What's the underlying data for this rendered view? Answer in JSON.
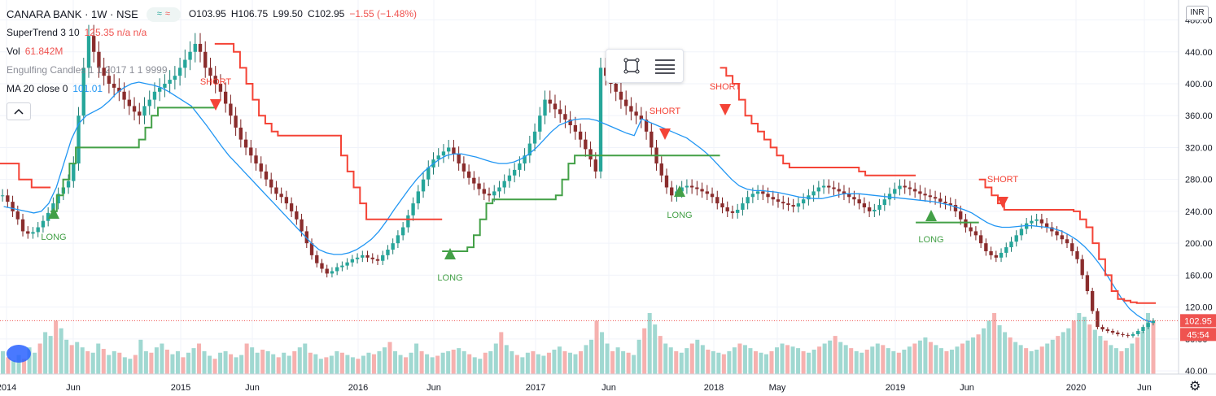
{
  "header": {
    "symbol": "CANARA BANK · 1W · NSE",
    "open": "O103.95",
    "high": "H106.75",
    "low": "L99.50",
    "close": "C102.95",
    "change": "−1.55 (−1.48%)",
    "badge_green": "≈",
    "badge_red": "≈"
  },
  "indicators": [
    {
      "name": "SuperTrend 3 10",
      "value": "125.35 n/a n/a"
    },
    {
      "name": "Vol",
      "value": "61.842M"
    },
    {
      "name": "Engulfing Candles 1 1 2017 1 1 9999",
      "value": ""
    },
    {
      "name": "MA 20 close 0",
      "value": "101.01"
    }
  ],
  "currency": "INR",
  "price_labels": {
    "last": "102.95",
    "countdown": "45:54"
  },
  "colors": {
    "up": "#26a69a",
    "down": "#ef5350",
    "ma": "#2196f3",
    "st_up": "#43a047",
    "st_down": "#f44336",
    "vol_up": "#8fd1c9",
    "vol_down": "#f4a3a1"
  },
  "chart_data": {
    "type": "candlestick",
    "title": "CANARA BANK · 1W · NSE",
    "x_ticks": [
      "2014",
      "Jun",
      "2015",
      "Jun",
      "2016",
      "Jun",
      "2017",
      "Jun",
      "2018",
      "May",
      "2019",
      "Jun",
      "2020",
      "Jun"
    ],
    "y_ticks": [
      "480.00",
      "440.00",
      "400.00",
      "360.00",
      "320.00",
      "280.00",
      "240.00",
      "200.00",
      "160.00",
      "120.00",
      "80.00",
      "40.00"
    ],
    "ylim": [
      36,
      505
    ],
    "grid": true,
    "series": [
      {
        "name": "CANARA BANK",
        "style": "candles",
        "values": [
          260,
          252,
          240,
          230,
          215,
          212,
          214,
          220,
          228,
          238,
          250,
          262,
          270,
          278,
          300,
          360,
          420,
          460,
          440,
          420,
          410,
          400,
          395,
          390,
          380,
          372,
          365,
          360,
          372,
          380,
          390,
          395,
          400,
          405,
          410,
          420,
          430,
          440,
          450,
          440,
          420,
          410,
          400,
          390,
          375,
          360,
          345,
          330,
          320,
          310,
          300,
          290,
          280,
          270,
          262,
          258,
          250,
          240,
          230,
          215,
          200,
          185,
          175,
          168,
          162,
          165,
          170,
          172,
          176,
          180,
          182,
          185,
          182,
          180,
          178,
          185,
          192,
          200,
          210,
          220,
          235,
          250,
          265,
          280,
          295,
          305,
          310,
          315,
          320,
          312,
          300,
          290,
          282,
          275,
          268,
          262,
          260,
          265,
          270,
          278,
          285,
          292,
          300,
          310,
          325,
          340,
          360,
          380,
          375,
          368,
          362,
          355,
          348,
          340,
          330,
          318,
          305,
          290,
          420,
          410,
          400,
          390,
          380,
          372,
          365,
          360,
          355,
          340,
          320,
          300,
          285,
          270,
          260,
          265,
          270,
          272,
          270,
          268,
          265,
          262,
          258,
          250,
          245,
          240,
          238,
          242,
          250,
          258,
          262,
          265,
          262,
          258,
          255,
          252,
          250,
          248,
          246,
          250,
          255,
          260,
          265,
          270,
          272,
          270,
          268,
          265,
          262,
          258,
          255,
          250,
          245,
          240,
          242,
          248,
          255,
          262,
          268,
          272,
          270,
          268,
          265,
          262,
          260,
          258,
          256,
          252,
          250,
          248,
          240,
          230,
          220,
          215,
          210,
          200,
          190,
          185,
          182,
          188,
          195,
          202,
          210,
          218,
          225,
          228,
          230,
          225,
          220,
          215,
          210,
          205,
          200,
          190,
          180,
          160,
          140,
          115,
          95,
          92,
          90,
          88,
          86,
          85,
          84,
          86,
          90,
          95,
          100,
          103
        ]
      },
      {
        "name": "MA 20",
        "style": "line",
        "values": [
          246,
          244,
          242,
          240,
          238,
          240,
          250,
          270,
          300,
          330,
          350,
          360,
          365,
          370,
          378,
          388,
          395,
          400,
          402,
          400,
          398,
          395,
          390,
          384,
          378,
          372,
          360,
          348,
          335,
          322,
          310,
          300,
          290,
          280,
          270,
          260,
          250,
          240,
          230,
          220,
          210,
          200,
          192,
          188,
          186,
          186,
          188,
          192,
          198,
          205,
          215,
          228,
          242,
          255,
          268,
          280,
          290,
          298,
          305,
          310,
          312,
          312,
          310,
          308,
          305,
          302,
          300,
          300,
          302,
          306,
          312,
          320,
          330,
          340,
          348,
          352,
          355,
          356,
          356,
          354,
          350,
          346,
          342,
          338,
          335,
          356,
          352,
          348,
          344,
          340,
          336,
          332,
          325,
          318,
          310,
          300,
          290,
          280,
          272,
          268,
          266,
          266,
          265,
          264,
          262,
          260,
          258,
          257,
          256,
          256,
          258,
          260,
          262,
          262,
          262,
          261,
          260,
          259,
          258,
          257,
          256,
          255,
          254,
          253,
          252,
          250,
          248,
          245,
          242,
          238,
          232,
          226,
          222,
          220,
          220,
          221,
          222,
          222,
          221,
          220,
          218,
          215,
          210,
          204,
          196,
          186,
          174,
          160,
          145,
          130,
          118,
          110,
          104,
          101
        ]
      },
      {
        "name": "SuperTrend",
        "style": "step",
        "segments": [
          {
            "trend": "down",
            "values": [
              300,
              300,
              300,
              280,
              280,
              270,
              270,
              270
            ]
          },
          {
            "trend": "up",
            "values": [
              240,
              260,
              280,
              300,
              320,
              320,
              320,
              320,
              320,
              320,
              320,
              320,
              320,
              320,
              330,
              345,
              360,
              370,
              370,
              370,
              370,
              370,
              370,
              370,
              370,
              370
            ]
          },
          {
            "trend": "down",
            "values": [
              450,
              450,
              450,
              440,
              420,
              400,
              380,
              360,
              350,
              340,
              335,
              335,
              335,
              335,
              335,
              335,
              335,
              335,
              335,
              335,
              310,
              290,
              270,
              250,
              230,
              230,
              230,
              230,
              230,
              230,
              230,
              230,
              230,
              230,
              230,
              230
            ]
          },
          {
            "trend": "up",
            "values": [
              190,
              190,
              190,
              190,
              195,
              210,
              230,
              250,
              255,
              255,
              255,
              255,
              255,
              255,
              255,
              255,
              255,
              255,
              260,
              280,
              300,
              310,
              310,
              310,
              310,
              310,
              310,
              310,
              310,
              310,
              310,
              310,
              310,
              310,
              310,
              310,
              310,
              310,
              310,
              310,
              310,
              310,
              310,
              310
            ]
          },
          {
            "trend": "down",
            "values": [
              420,
              410,
              400,
              380,
              360,
              350,
              340,
              330,
              320,
              310,
              300,
              295,
              295,
              295,
              295,
              295,
              295,
              295,
              295,
              295,
              295,
              295,
              290,
              285,
              285,
              285,
              285,
              285,
              285,
              285,
              285
            ]
          },
          {
            "trend": "up",
            "values": [
              226,
              226,
              226,
              226,
              226,
              226,
              226,
              226,
              226,
              226
            ]
          },
          {
            "trend": "down",
            "values": [
              280,
              270,
              260,
              250,
              242,
              242,
              242,
              242,
              242,
              242,
              242,
              242,
              242,
              242,
              242,
              240,
              230,
              220,
              200,
              180,
              160,
              140,
              130,
              128,
              126,
              125,
              125,
              125
            ]
          }
        ]
      },
      {
        "name": "Vol",
        "style": "histogram",
        "values": [
          30,
          22,
          18,
          25,
          20,
          35,
          28,
          40,
          55,
          50,
          70,
          60,
          45,
          38,
          42,
          35,
          30,
          28,
          40,
          33,
          25,
          30,
          28,
          22,
          20,
          25,
          45,
          30,
          28,
          35,
          40,
          32,
          26,
          30,
          22,
          28,
          34,
          40,
          30,
          24,
          20,
          28,
          30,
          26,
          22,
          25,
          40,
          35,
          28,
          32,
          30,
          26,
          22,
          28,
          24,
          30,
          35,
          40,
          28,
          26,
          20,
          22,
          24,
          30,
          28,
          25,
          22,
          20,
          24,
          28,
          26,
          30,
          35,
          42,
          30,
          25,
          22,
          28,
          40,
          30,
          26,
          22,
          24,
          28,
          30,
          32,
          34,
          30,
          26,
          22,
          20,
          28,
          30,
          40,
          55,
          38,
          30,
          25,
          22,
          28,
          30,
          26,
          24,
          28,
          32,
          36,
          30,
          28,
          26,
          30,
          38,
          45,
          70,
          55,
          40,
          30,
          35,
          30,
          28,
          25,
          45,
          60,
          80,
          65,
          50,
          40,
          35,
          30,
          28,
          34,
          40,
          45,
          38,
          32,
          30,
          28,
          26,
          30,
          35,
          40,
          38,
          34,
          30,
          28,
          26,
          30,
          35,
          40,
          38,
          36,
          34,
          30,
          28,
          32,
          36,
          40,
          44,
          50,
          42,
          38,
          34,
          30,
          28,
          32,
          36,
          40,
          38,
          34,
          30,
          28,
          32,
          36,
          40,
          44,
          48,
          42,
          38,
          34,
          30,
          32,
          36,
          40,
          44,
          48,
          52,
          60,
          70,
          80,
          64,
          55,
          48,
          42,
          38,
          34,
          30,
          32,
          36,
          40,
          45,
          50,
          55,
          60,
          70,
          80,
          75,
          65,
          58,
          50,
          44,
          38,
          34,
          30,
          34,
          40,
          48,
          56,
          80,
          70
        ]
      }
    ],
    "annotations": [
      "LONG",
      "SHORT",
      "LONG",
      "SHORT",
      "LONG",
      "SHORT",
      "LONG",
      "SHORT"
    ]
  }
}
